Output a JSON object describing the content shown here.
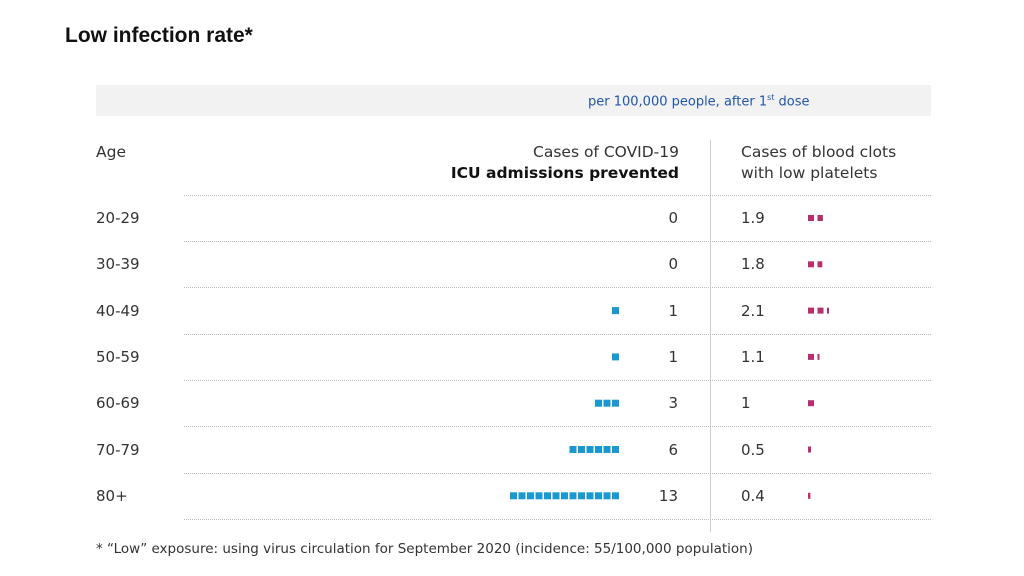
{
  "title": "Low infection rate*",
  "band_label": "per 100,000 people, after 1",
  "band_sup": "st",
  "band_tail": " dose",
  "headers": {
    "age": "Age",
    "covid_line1": "Cases of COVID-19",
    "covid_line2": "ICU admissions prevented",
    "clots_line1": "Cases of blood clots",
    "clots_line2": "with low platelets"
  },
  "colors": {
    "covid": "#1a98d2",
    "clots": "#b5306c"
  },
  "chart_data": {
    "type": "table",
    "title": "Low infection rate*",
    "subtitle": "per 100,000 people, after 1st dose",
    "columns": [
      "Age",
      "Cases of COVID-19 ICU admissions prevented",
      "Cases of blood clots with low platelets"
    ],
    "categories": [
      "20-29",
      "30-39",
      "40-49",
      "50-59",
      "60-69",
      "70-79",
      "80+"
    ],
    "series": [
      {
        "name": "Cases of COVID-19 ICU admissions prevented",
        "values": [
          0,
          0,
          1,
          1,
          3,
          6,
          13
        ],
        "labels": [
          "0",
          "0",
          "1",
          "1",
          "3",
          "6",
          "13"
        ]
      },
      {
        "name": "Cases of blood clots with low platelets",
        "values": [
          1.9,
          1.8,
          2.1,
          1.1,
          1,
          0.5,
          0.4
        ],
        "labels": [
          "1.9",
          "1.8",
          "2.1",
          "1.1",
          "1",
          "0.5",
          "0.4"
        ]
      }
    ]
  },
  "footnote": "* “Low” exposure: using virus circulation for September 2020 (incidence: 55/100,000 population)"
}
